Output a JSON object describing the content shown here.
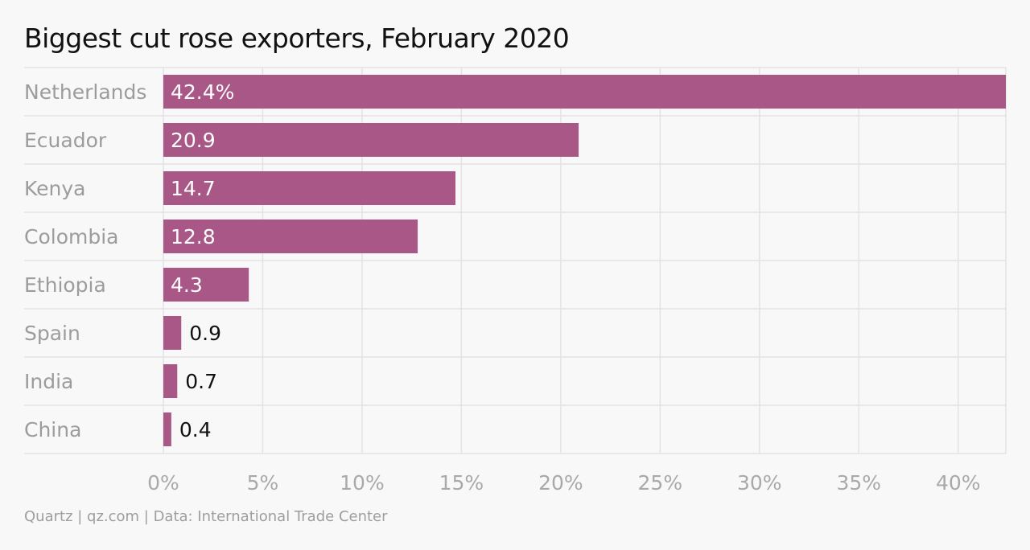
{
  "chart_data": {
    "type": "bar",
    "orientation": "horizontal",
    "title": "Biggest cut rose exporters, February 2020",
    "source": "Quartz | qz.com | Data: International Trade Center",
    "categories": [
      "Netherlands",
      "Ecuador",
      "Kenya",
      "Colombia",
      "Ethiopia",
      "Spain",
      "India",
      "China"
    ],
    "values": [
      42.4,
      20.9,
      14.7,
      12.8,
      4.3,
      0.9,
      0.7,
      0.4
    ],
    "value_labels": [
      "42.4%",
      "20.9",
      "14.7",
      "12.8",
      "4.3",
      "0.9",
      "0.7",
      "0.4"
    ],
    "xticks": [
      0,
      5,
      10,
      15,
      20,
      25,
      30,
      35,
      40
    ],
    "xtick_labels": [
      "0%",
      "5%",
      "10%",
      "15%",
      "20%",
      "25%",
      "30%",
      "35%",
      "40%"
    ],
    "xlim": [
      0,
      42.4
    ],
    "grid": true,
    "colors": {
      "bar": "#a85787",
      "grid": "#e3e3e3",
      "background": "#f8f8f8"
    }
  }
}
